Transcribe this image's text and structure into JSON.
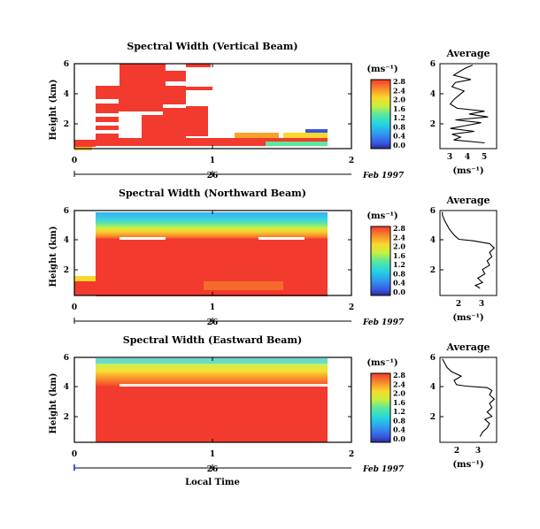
{
  "chart_data": [
    {
      "type": "heatmap",
      "title": "Spectral Width (Vertical Beam)",
      "ylabel": "Height (km)",
      "x_ticks": [
        "0",
        "1",
        "2"
      ],
      "y_ticks": [
        "2",
        "4",
        "6"
      ],
      "xlim": [
        0,
        2
      ],
      "ylim": [
        0.2,
        6.1
      ],
      "date_tick": "26",
      "date_label": "Feb 1997",
      "colorbar": {
        "unit": "(ms⁻¹)",
        "ticks": [
          "0.0",
          "0.4",
          "0.8",
          "1.2",
          "1.6",
          "2.0",
          "2.4",
          "2.8"
        ],
        "range": [
          0,
          3.0
        ]
      },
      "average": {
        "title": "Average",
        "xlabel": "(ms⁻¹)",
        "x_ticks": [
          "3",
          "4",
          "5"
        ],
        "xlim": [
          2.4,
          5.7
        ],
        "y_ticks": [
          "2",
          "4",
          "6"
        ],
        "ylim": [
          0.2,
          6.1
        ]
      }
    },
    {
      "type": "heatmap",
      "title": "Spectral Width (Northward Beam)",
      "ylabel": "Height (km)",
      "x_ticks": [
        "0",
        "1",
        "2"
      ],
      "y_ticks": [
        "2",
        "4",
        "6"
      ],
      "xlim": [
        0,
        2
      ],
      "ylim": [
        0.2,
        6.1
      ],
      "date_tick": "26",
      "date_label": "Feb 1997",
      "colorbar": {
        "unit": "(ms⁻¹)",
        "ticks": [
          "0.0",
          "0.4",
          "0.8",
          "1.2",
          "1.6",
          "2.0",
          "2.4",
          "2.8"
        ],
        "range": [
          0,
          3.0
        ]
      },
      "average": {
        "title": "Average",
        "xlabel": "(ms⁻¹)",
        "x_ticks": [
          "2",
          "3"
        ],
        "xlim": [
          1.2,
          3.6
        ],
        "y_ticks": [
          "2",
          "4",
          "6"
        ],
        "ylim": [
          0.2,
          6.1
        ]
      }
    },
    {
      "type": "heatmap",
      "title": "Spectral Width (Eastward Beam)",
      "ylabel": "Height (km)",
      "xlabel": "Local Time",
      "x_ticks": [
        "0",
        "1",
        "2"
      ],
      "y_ticks": [
        "2",
        "4",
        "6"
      ],
      "xlim": [
        0,
        2
      ],
      "ylim": [
        0.2,
        6.1
      ],
      "date_tick": "26",
      "date_label": "Feb 1997",
      "colorbar": {
        "unit": "(ms⁻¹)",
        "ticks": [
          "0.0",
          "0.4",
          "0.8",
          "1.2",
          "1.6",
          "2.0",
          "2.4",
          "2.8"
        ],
        "range": [
          0,
          3.0
        ]
      },
      "average": {
        "title": "Average",
        "xlabel": "(ms⁻¹)",
        "x_ticks": [
          "2",
          "3"
        ],
        "xlim": [
          1.3,
          3.7
        ],
        "y_ticks": [
          "2",
          "4",
          "6"
        ],
        "ylim": [
          0.2,
          6.1
        ]
      }
    }
  ],
  "profiles": [
    [
      [
        5.0,
        0.6
      ],
      [
        3.2,
        0.8
      ],
      [
        3.6,
        1.0
      ],
      [
        3.1,
        1.2
      ],
      [
        4.4,
        1.4
      ],
      [
        3.0,
        1.6
      ],
      [
        3.9,
        1.8
      ],
      [
        4.8,
        2.0
      ],
      [
        3.3,
        2.2
      ],
      [
        5.2,
        2.4
      ],
      [
        4.1,
        2.6
      ],
      [
        5.0,
        2.8
      ],
      [
        3.4,
        3.0
      ],
      [
        3.0,
        3.3
      ],
      [
        3.2,
        3.6
      ],
      [
        3.5,
        3.9
      ],
      [
        3.8,
        4.2
      ],
      [
        3.1,
        4.5
      ],
      [
        3.3,
        4.8
      ],
      [
        4.2,
        5.0
      ],
      [
        3.2,
        5.3
      ],
      [
        3.6,
        5.6
      ],
      [
        3.9,
        5.8
      ],
      [
        4.3,
        6.0
      ]
    ],
    [
      [
        2.9,
        0.7
      ],
      [
        2.7,
        0.9
      ],
      [
        3.0,
        1.1
      ],
      [
        2.8,
        1.4
      ],
      [
        3.1,
        1.7
      ],
      [
        3.0,
        2.0
      ],
      [
        3.3,
        2.3
      ],
      [
        3.2,
        2.6
      ],
      [
        3.4,
        2.9
      ],
      [
        3.3,
        3.2
      ],
      [
        3.5,
        3.5
      ],
      [
        3.3,
        3.8
      ],
      [
        2.6,
        4.0
      ],
      [
        2.0,
        4.1
      ],
      [
        1.8,
        4.4
      ],
      [
        1.6,
        4.8
      ],
      [
        1.5,
        5.1
      ],
      [
        1.4,
        5.4
      ],
      [
        1.3,
        5.8
      ],
      [
        1.3,
        6.0
      ]
    ],
    [
      [
        3.0,
        0.6
      ],
      [
        3.1,
        0.9
      ],
      [
        3.3,
        1.2
      ],
      [
        3.4,
        1.5
      ],
      [
        3.2,
        1.8
      ],
      [
        3.5,
        2.0
      ],
      [
        3.3,
        2.3
      ],
      [
        3.5,
        2.6
      ],
      [
        3.4,
        2.9
      ],
      [
        3.6,
        3.2
      ],
      [
        3.4,
        3.5
      ],
      [
        3.5,
        3.8
      ],
      [
        3.3,
        4.0
      ],
      [
        2.4,
        4.1
      ],
      [
        2.0,
        4.2
      ],
      [
        1.9,
        4.5
      ],
      [
        2.2,
        4.8
      ],
      [
        1.8,
        5.1
      ],
      [
        1.6,
        5.4
      ],
      [
        1.5,
        5.7
      ],
      [
        1.4,
        6.0
      ]
    ]
  ]
}
